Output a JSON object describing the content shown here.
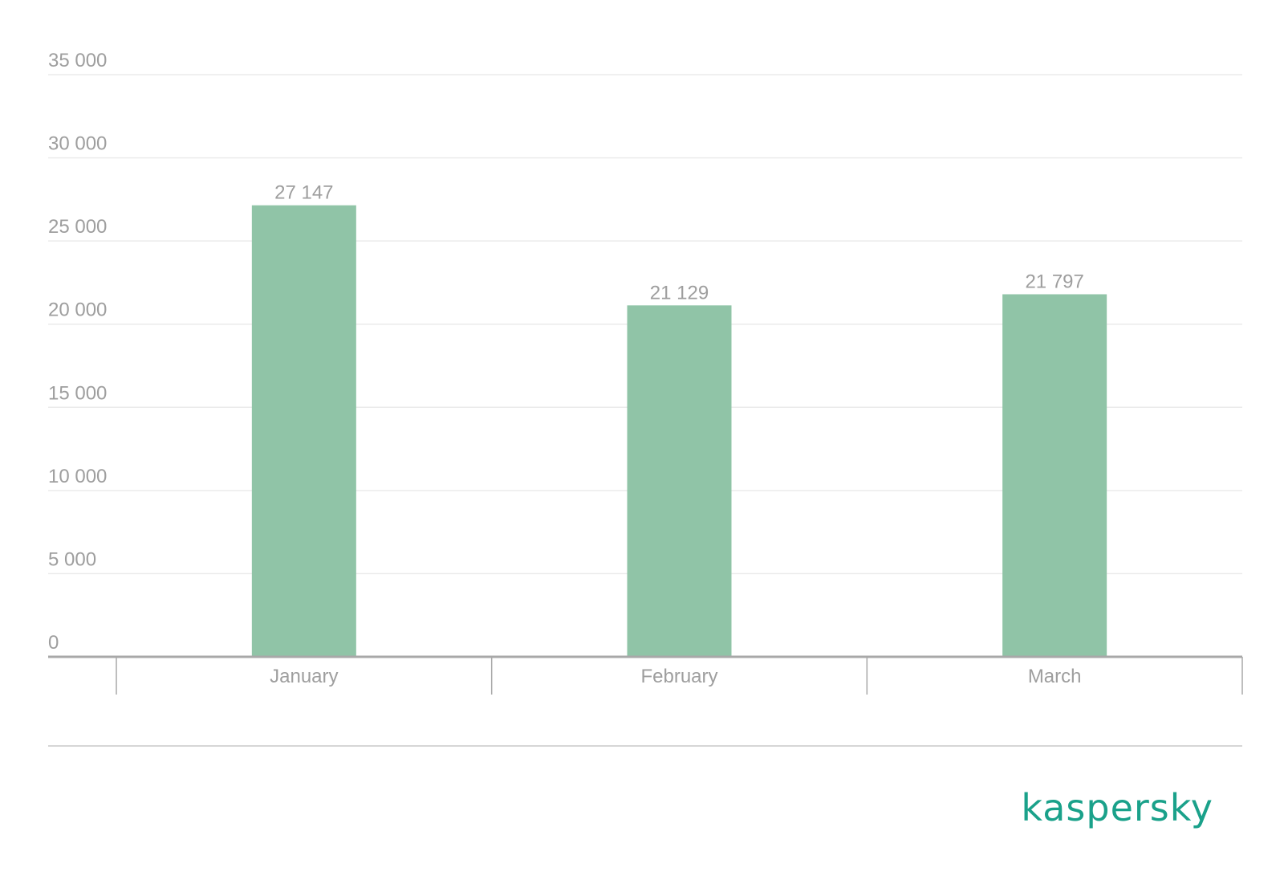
{
  "chart_data": {
    "type": "bar",
    "categories": [
      "January",
      "February",
      "March"
    ],
    "values": [
      27147,
      21129,
      21797
    ],
    "value_labels": [
      "27 147",
      "21 129",
      "21 797"
    ],
    "ylim": [
      0,
      35000
    ],
    "y_ticks": [
      0,
      5000,
      10000,
      15000,
      20000,
      25000,
      30000,
      35000
    ],
    "y_tick_labels": [
      "0",
      "5 000",
      "10 000",
      "15 000",
      "20 000",
      "25 000",
      "30 000",
      "35 000"
    ],
    "title": "",
    "xlabel": "",
    "ylabel": "",
    "grid": true,
    "bar_color": "#90c4a7"
  },
  "brand": {
    "text": "kaspersky",
    "color": "#1aa18a"
  }
}
